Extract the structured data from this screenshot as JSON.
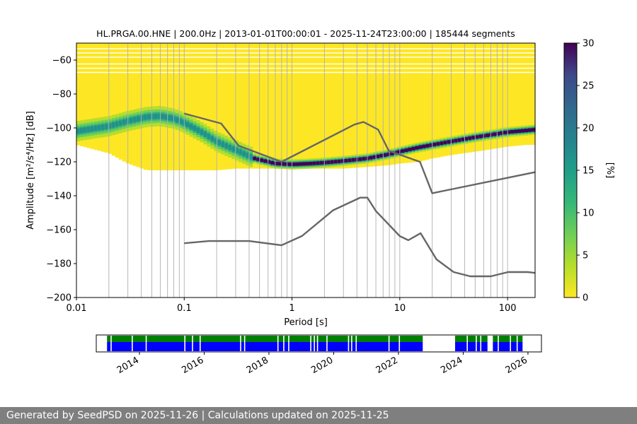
{
  "chart_data": [
    {
      "type": "heatmap",
      "title": "HL.PRGA.00.HNE | 200.0Hz | 2013-01-01T00:00:01 - 2025-11-24T23:00:00 | 185444 segments",
      "xlabel": "Period [s]",
      "ylabel": "Amplitude [m²/s⁴/Hz] [dB]",
      "x_scale": "log",
      "xlim": [
        0.01,
        180
      ],
      "ylim": [
        -200,
        -50
      ],
      "x_ticks": [
        0.01,
        0.1,
        1,
        10,
        100
      ],
      "x_tick_labels": [
        "0.01",
        "0.1",
        "1",
        "10",
        "100"
      ],
      "y_ticks": [
        -200,
        -180,
        -160,
        -140,
        -120,
        -100,
        -80,
        -60
      ],
      "y_tick_labels": [
        "−200",
        "−180",
        "−160",
        "−140",
        "−120",
        "−100",
        "−80",
        "−60"
      ],
      "grid": "vertical",
      "mode_line": {
        "period": [
          0.01,
          0.02,
          0.03,
          0.045,
          0.06,
          0.08,
          0.1,
          0.15,
          0.2,
          0.3,
          0.45,
          0.7,
          1,
          1.5,
          2,
          3,
          5,
          8,
          10,
          15,
          20,
          30,
          50,
          80,
          100,
          150,
          180
        ],
        "db": [
          -102,
          -99,
          -96,
          -93.5,
          -93,
          -94.5,
          -97,
          -103,
          -108,
          -113,
          -118,
          -121,
          -121.5,
          -121,
          -120.5,
          -119.5,
          -118,
          -115.5,
          -114,
          -111.5,
          -110,
          -108,
          -105.5,
          -103.5,
          -102.5,
          -101.5,
          -101
        ]
      },
      "density_band": {
        "period": [
          0.01,
          0.02,
          0.03,
          0.045,
          0.06,
          0.08,
          0.1,
          0.15,
          0.2,
          0.3,
          0.45,
          0.7,
          1,
          1.5,
          2,
          3,
          5,
          8,
          10,
          15,
          20,
          30,
          50,
          80,
          100,
          150,
          180
        ],
        "lower_db": [
          -110,
          -115,
          -121,
          -125,
          -125,
          -125,
          -125,
          -125,
          -125,
          -124,
          -124,
          -124,
          -124,
          -124,
          -124,
          -124,
          -123,
          -122,
          -121,
          -120,
          -118,
          -116,
          -114,
          -112,
          -111,
          -110,
          -110
        ],
        "upper_db": [
          -50,
          -50,
          -50,
          -50,
          -50,
          -50,
          -50,
          -50,
          -50,
          -50,
          -50,
          -50,
          -50,
          -50,
          -50,
          -50,
          -50,
          -50,
          -50,
          -50,
          -50,
          -50,
          -50,
          -50,
          -50,
          -50,
          -50
        ]
      },
      "reference_curves": [
        {
          "period": [
            0.1,
            0.22,
            0.32,
            0.8,
            3.8,
            4.6,
            6.3,
            7.9,
            15.4,
            20,
            354.8
          ],
          "db": [
            -91.5,
            -97.4,
            -110.5,
            -120,
            -98,
            -96.5,
            -101,
            -113.5,
            -120,
            -138.5,
            -126
          ]
        },
        {
          "period": [
            0.1,
            0.17,
            0.4,
            0.8,
            1.24,
            2.4,
            4.3,
            5,
            6,
            10,
            12,
            15.6,
            21.9,
            31.6,
            45,
            70,
            101,
            154,
            180
          ],
          "db": [
            -168,
            -166.7,
            -166.7,
            -169.2,
            -163.7,
            -148.6,
            -141.1,
            -141.1,
            -149,
            -163.8,
            -166.2,
            -162.1,
            -177.5,
            -185,
            -187.5,
            -187.5,
            -185,
            -185,
            -185.5
          ]
        }
      ],
      "colorbar": {
        "label": "[%]",
        "min": 0,
        "max": 30,
        "ticks": [
          0,
          5,
          10,
          15,
          20,
          25,
          30
        ],
        "colormap": "viridis_r"
      }
    },
    {
      "type": "bar",
      "xlim": [
        "2012-09",
        "2026-06"
      ],
      "x_tick_labels": [
        "2014",
        "2016",
        "2018",
        "2020",
        "2022",
        "2024",
        "2026"
      ],
      "series": [
        {
          "color": "#008000",
          "coverage": [
            [
              "2013-01",
              "2022-10"
            ],
            [
              "2023-10",
              "2024-10"
            ],
            [
              "2024-12",
              "2025-11"
            ]
          ]
        },
        {
          "color": "#0000ff",
          "coverage": [
            [
              "2013-01",
              "2022-10"
            ],
            [
              "2023-10",
              "2024-10"
            ],
            [
              "2024-12",
              "2025-11"
            ]
          ]
        }
      ],
      "gaps": [
        "2013-02-10",
        "2013-10-05",
        "2014-03-10",
        "2015-05-20",
        "2015-08-15",
        "2015-11-10",
        "2017-02-10",
        "2017-03-25",
        "2018-04-05",
        "2018-06-10",
        "2018-08-05",
        "2019-04-10",
        "2019-05-20",
        "2019-06-25",
        "2019-10-10",
        "2020-06-10",
        "2020-07-15",
        "2020-09-05",
        "2021-09-10",
        "2022-01-05",
        "2024-02-10",
        "2024-05-20",
        "2024-07-10",
        "2025-01-25",
        "2025-06-10",
        "2025-08-25"
      ]
    }
  ],
  "footer": {
    "text": "Generated by SeedPSD on 2025-11-26 | Calculations updated on 2025-11-25"
  },
  "colors": {
    "reference_curve": "#666666",
    "grid": "#b0b0b0",
    "footer_bg": "#7f7f7f"
  }
}
